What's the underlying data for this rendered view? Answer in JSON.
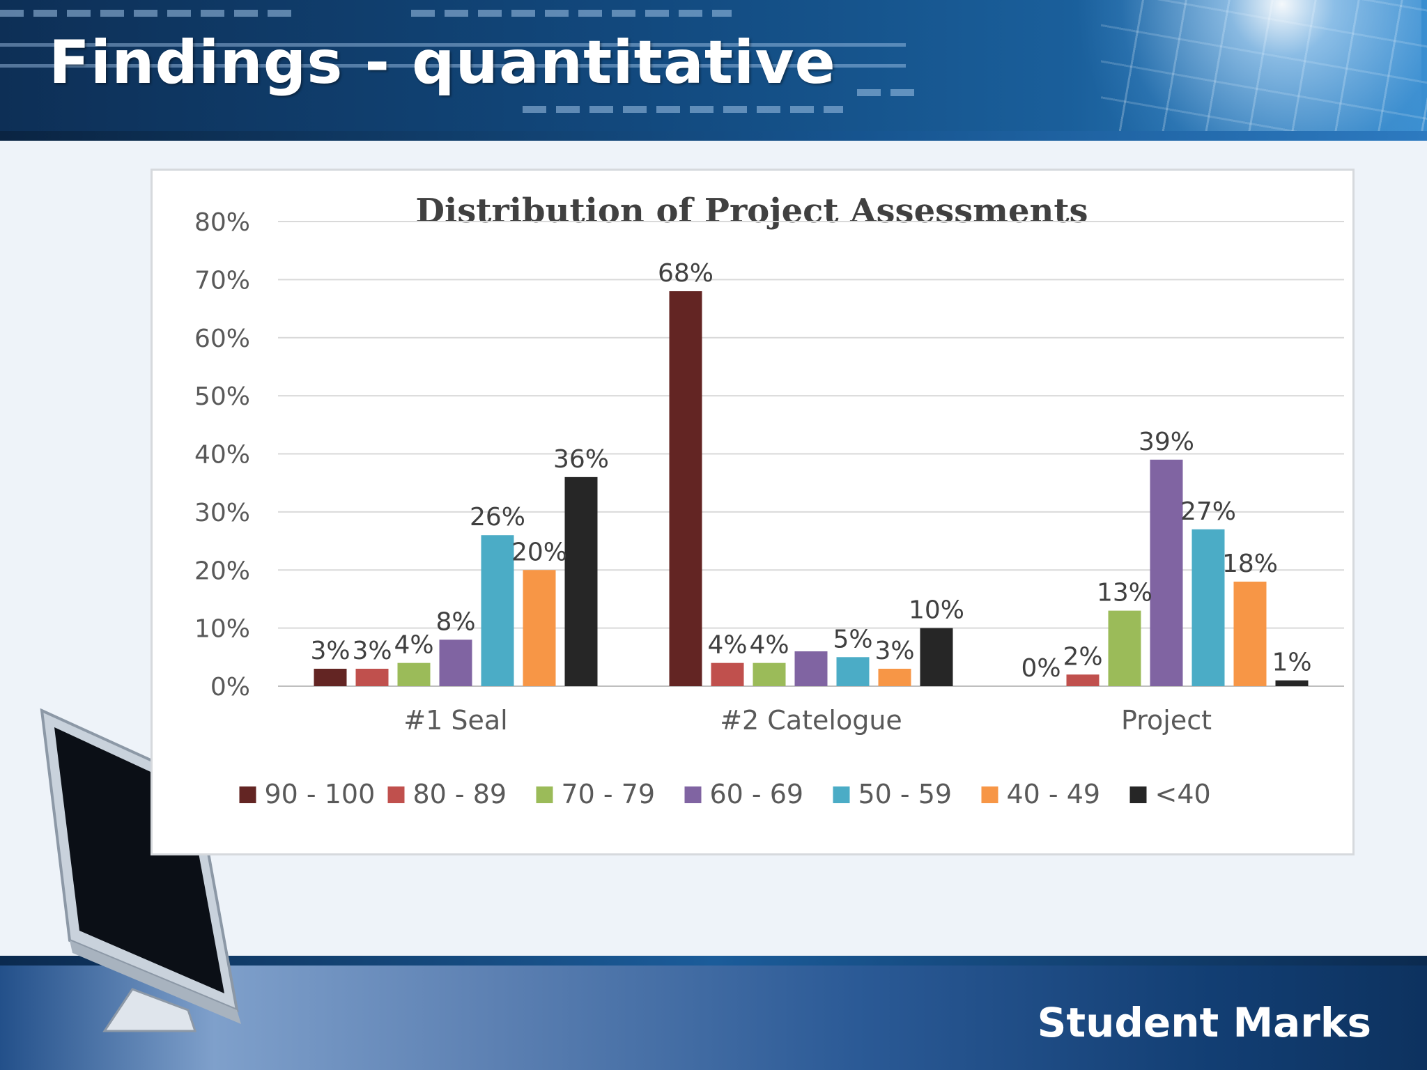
{
  "slide": {
    "title": "Findings - quantitative",
    "footer_label": "Student Marks"
  },
  "colors": {
    "header_blue": "#12497e",
    "footer_blue": "#123e73"
  },
  "chart_data": {
    "type": "bar",
    "title": "Distribution  of Project Assessments",
    "categories": [
      "#1 Seal",
      "#2 Catelogue",
      "Project"
    ],
    "ylim": [
      0,
      80
    ],
    "y_ticks": [
      "0%",
      "10%",
      "20%",
      "30%",
      "40%",
      "50%",
      "60%",
      "70%",
      "80%"
    ],
    "grid": true,
    "legend_position": "bottom",
    "series": [
      {
        "name": "90 - 100",
        "color": "#632523",
        "values": [
          3,
          68,
          0
        ],
        "labels": [
          "3%",
          "68%",
          "0%"
        ]
      },
      {
        "name": "80 - 89",
        "color": "#c0504d",
        "values": [
          3,
          4,
          2
        ],
        "labels": [
          "3%",
          "4%",
          "2%"
        ]
      },
      {
        "name": "70 - 79",
        "color": "#9bbb59",
        "values": [
          4,
          4,
          13
        ],
        "labels": [
          "4%",
          "4%",
          "13%"
        ]
      },
      {
        "name": "60 - 69",
        "color": "#8064a2",
        "values": [
          8,
          6,
          39
        ],
        "labels": [
          "8%",
          "",
          "39%"
        ]
      },
      {
        "name": "50 - 59",
        "color": "#4bacc6",
        "values": [
          26,
          5,
          27
        ],
        "labels": [
          "26%",
          "5%",
          "27%"
        ]
      },
      {
        "name": "40 - 49",
        "color": "#f79646",
        "values": [
          20,
          3,
          18
        ],
        "labels": [
          "20%",
          "3%",
          "18%"
        ]
      },
      {
        "name": "<40",
        "color": "#262626",
        "values": [
          36,
          10,
          1
        ],
        "labels": [
          "36%",
          "10%",
          "1%"
        ]
      }
    ]
  }
}
